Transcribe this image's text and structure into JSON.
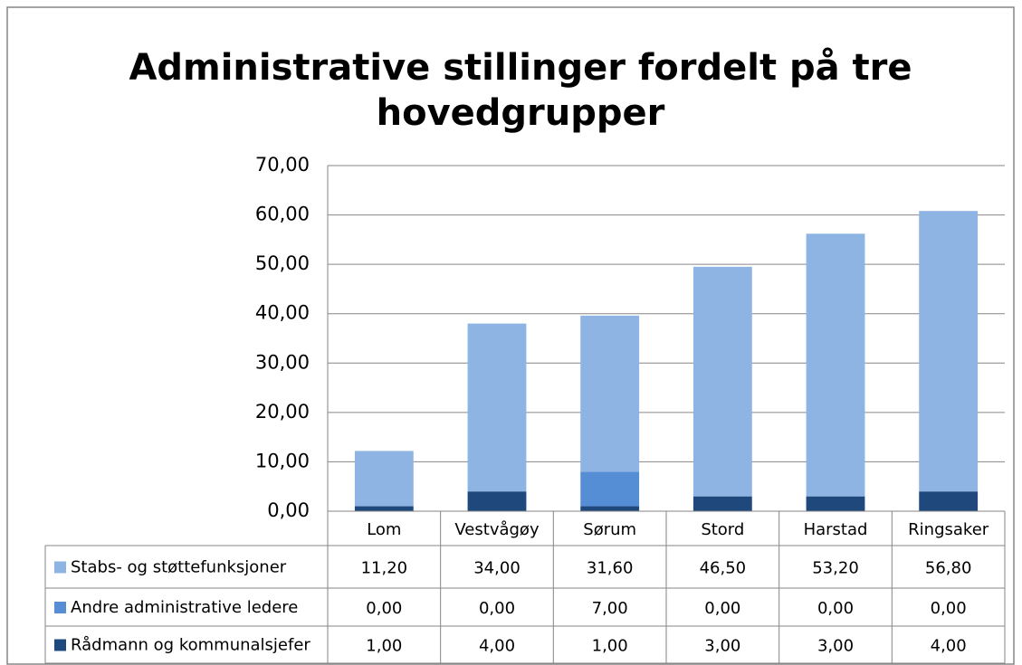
{
  "chart_data": {
    "type": "stacked_bar",
    "title": "Administrative stillinger fordelt på tre hovedgrupper",
    "categories": [
      "Lom",
      "Vestvågøy",
      "Sørum",
      "Stord",
      "Harstad",
      "Ringsaker"
    ],
    "series": [
      {
        "name": "Stabs- og støttefunksjoner",
        "color": "#8eb4e3",
        "values": [
          11.2,
          34,
          31.6,
          46.5,
          53.2,
          56.8
        ],
        "value_labels": [
          "11,20",
          "34,00",
          "31,60",
          "46,50",
          "53,20",
          "56,80"
        ]
      },
      {
        "name": "Andre administrative ledere",
        "color": "#558ed5",
        "values": [
          0,
          0,
          7,
          0,
          0,
          0
        ],
        "value_labels": [
          "0,00",
          "0,00",
          "7,00",
          "0,00",
          "0,00",
          "0,00"
        ]
      },
      {
        "name": "Rådmann og kommunalsjefer",
        "color": "#1f497d",
        "values": [
          1,
          4,
          1,
          3,
          3,
          4
        ],
        "value_labels": [
          "1,00",
          "4,00",
          "1,00",
          "3,00",
          "3,00",
          "4,00"
        ]
      }
    ],
    "ylim": [
      0,
      70
    ],
    "yticks": [
      {
        "value": 0,
        "label": "0,00"
      },
      {
        "value": 10,
        "label": "10,00"
      },
      {
        "value": 20,
        "label": "20,00"
      },
      {
        "value": 30,
        "label": "30,00"
      },
      {
        "value": 40,
        "label": "40,00"
      },
      {
        "value": 50,
        "label": "50,00"
      },
      {
        "value": 60,
        "label": "60,00"
      },
      {
        "value": 70,
        "label": "70,00"
      }
    ],
    "grid": true
  }
}
